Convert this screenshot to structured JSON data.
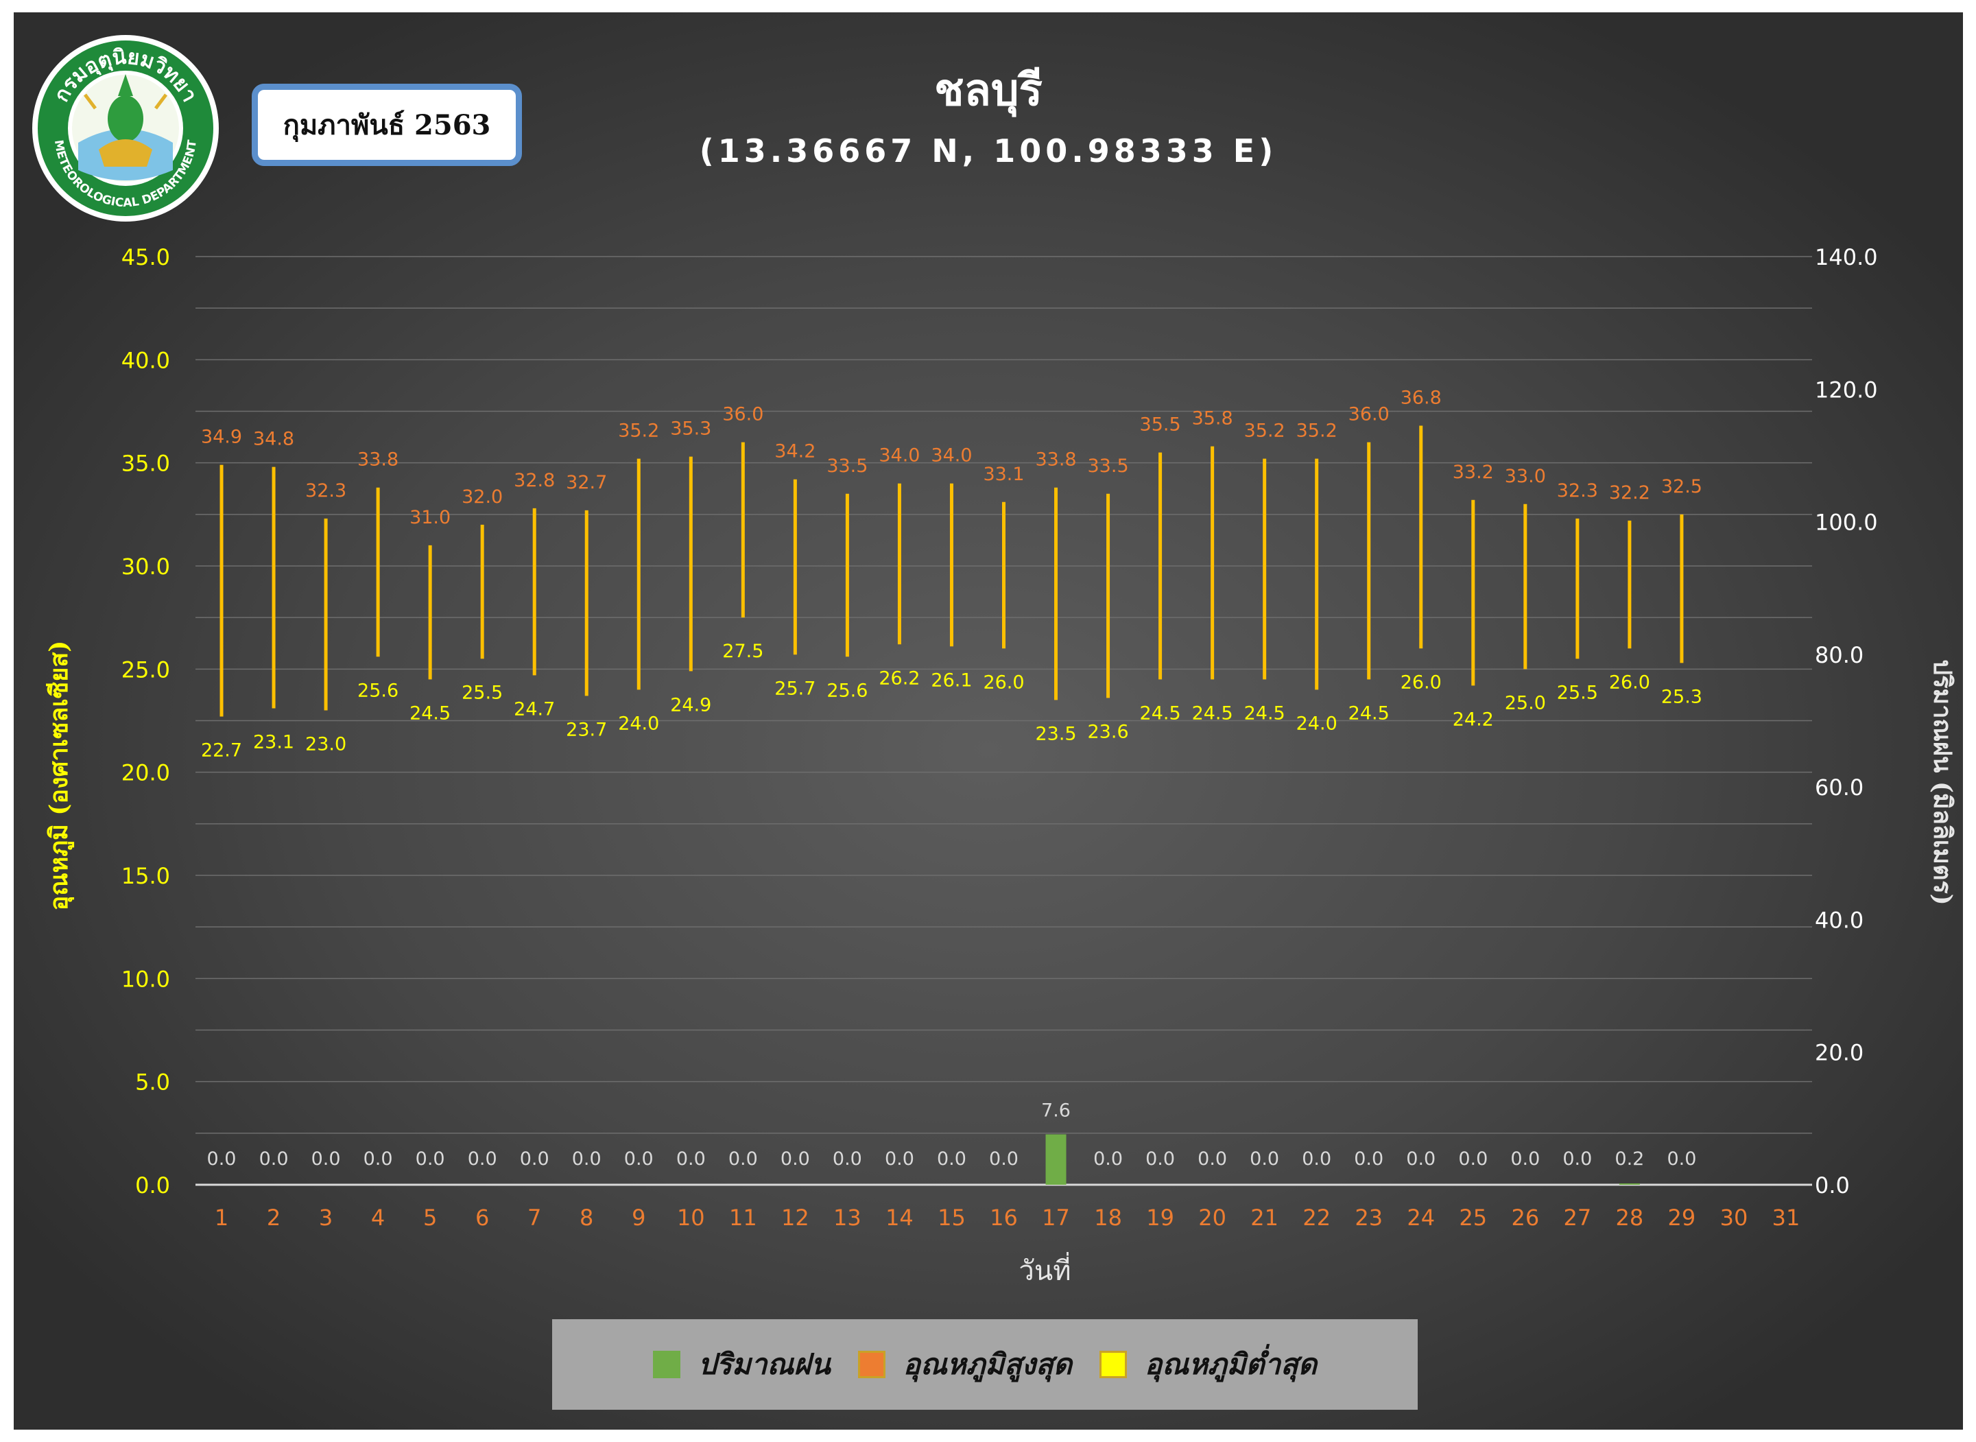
{
  "header": {
    "title": "ชลบุรี",
    "subtitle": "(13.36667 N, 100.98333 E)",
    "month": "กุมภาพันธ์ 2563"
  },
  "logo": {
    "text_top": "กรมอุตุนิยมวิทยา",
    "text_bottom": "METEOROLOGICAL DEPARTMENT",
    "icon": "emblem-icon"
  },
  "legend": {
    "items": [
      {
        "label": "ปริมาณฝน",
        "color": "#70ad47"
      },
      {
        "label": "อุณหภูมิสูงสุด",
        "color": "#ed7d31"
      },
      {
        "label": "อุณหภูมิต่ำสุด",
        "color": "#ffff00"
      }
    ]
  },
  "chart_data": {
    "type": "bar",
    "categories": [
      "1",
      "2",
      "3",
      "4",
      "5",
      "6",
      "7",
      "8",
      "9",
      "10",
      "11",
      "12",
      "13",
      "14",
      "15",
      "16",
      "17",
      "18",
      "19",
      "20",
      "21",
      "22",
      "23",
      "24",
      "25",
      "26",
      "27",
      "28",
      "29",
      "30",
      "31"
    ],
    "xlabel": "วันที่",
    "ylabel_left": "อุณหภูมิ (องศาเซลเซียส)",
    "ylabel_right": "ปริมาณฝน (มิลลิเมตร)",
    "ylim_left": [
      0,
      45
    ],
    "ylim_right": [
      0,
      140
    ],
    "yticks_left": [
      "0.0",
      "5.0",
      "10.0",
      "15.0",
      "20.0",
      "25.0",
      "30.0",
      "35.0",
      "40.0",
      "45.0"
    ],
    "yticks_right": [
      "0.0",
      "20.0",
      "40.0",
      "60.0",
      "80.0",
      "100.0",
      "120.0",
      "140.0"
    ],
    "grid": true,
    "legend_position": "bottom",
    "series": [
      {
        "name": "อุณหภูมิสูงสุด",
        "values": [
          34.9,
          34.8,
          32.3,
          33.8,
          31.0,
          32.0,
          32.8,
          32.7,
          35.2,
          35.3,
          36.0,
          34.2,
          33.5,
          34.0,
          34.0,
          33.1,
          33.8,
          33.5,
          35.5,
          35.8,
          35.2,
          35.2,
          36.0,
          36.8,
          33.2,
          33.0,
          32.3,
          32.2,
          32.5,
          null,
          null
        ]
      },
      {
        "name": "อุณหภูมิต่ำสุด",
        "values": [
          22.7,
          23.1,
          23.0,
          25.6,
          24.5,
          25.5,
          24.7,
          23.7,
          24.0,
          24.9,
          27.5,
          25.7,
          25.6,
          26.2,
          26.1,
          26.0,
          23.5,
          23.6,
          24.5,
          24.5,
          24.5,
          24.0,
          24.5,
          26.0,
          24.2,
          25.0,
          25.5,
          26.0,
          25.3,
          null,
          null
        ]
      },
      {
        "name": "ปริมาณฝน",
        "axis": "right",
        "values": [
          0.0,
          0.0,
          0.0,
          0.0,
          0.0,
          0.0,
          0.0,
          0.0,
          0.0,
          0.0,
          0.0,
          0.0,
          0.0,
          0.0,
          0.0,
          0.0,
          7.6,
          0.0,
          0.0,
          0.0,
          0.0,
          0.0,
          0.0,
          0.0,
          0.0,
          0.0,
          0.0,
          0.2,
          0.0,
          null,
          null
        ]
      }
    ],
    "labels": {
      "max": [
        "34.9",
        "34.8",
        "32.3",
        "33.8",
        "31.0",
        "32.0",
        "32.8",
        "32.7",
        "35.2",
        "35.3",
        "36.0",
        "34.2",
        "33.5",
        "34.0",
        "34.0",
        "33.1",
        "33.8",
        "33.5",
        "35.5",
        "35.8",
        "35.2",
        "35.2",
        "36.0",
        "36.8",
        "33.2",
        "33.0",
        "32.3",
        "32.2",
        "32.5",
        "",
        ""
      ],
      "min": [
        "22.7",
        "23.1",
        "23.0",
        "25.6",
        "24.5",
        "25.5",
        "24.7",
        "23.7",
        "24.0",
        "24.9",
        "27.5",
        "25.7",
        "25.6",
        "26.2",
        "26.1",
        "26.0",
        "23.5",
        "23.6",
        "24.5",
        "24.5",
        "24.5",
        "24.0",
        "24.5",
        "26.0",
        "24.2",
        "25.0",
        "25.5",
        "26.0",
        "25.3",
        "",
        ""
      ],
      "rain": [
        "0.0",
        "0.0",
        "0.0",
        "0.0",
        "0.0",
        "0.0",
        "0.0",
        "0.0",
        "0.0",
        "0.0",
        "0.0",
        "0.0",
        "0.0",
        "0.0",
        "0.0",
        "0.0",
        "7.6",
        "0.0",
        "0.0",
        "0.0",
        "0.0",
        "0.0",
        "0.0",
        "0.0",
        "0.0",
        "0.0",
        "0.0",
        "0.2",
        "0.0",
        "",
        ""
      ]
    },
    "colors": {
      "range_line": "#ffc000",
      "max_label": "#ed7d31",
      "min_label": "#ffff00",
      "rain_bar": "#70ad47",
      "rain_label": "#d9d9d9",
      "left_axis": "#ffff00",
      "right_axis": "#ffffff",
      "x_ticks": "#ed7d31"
    }
  }
}
